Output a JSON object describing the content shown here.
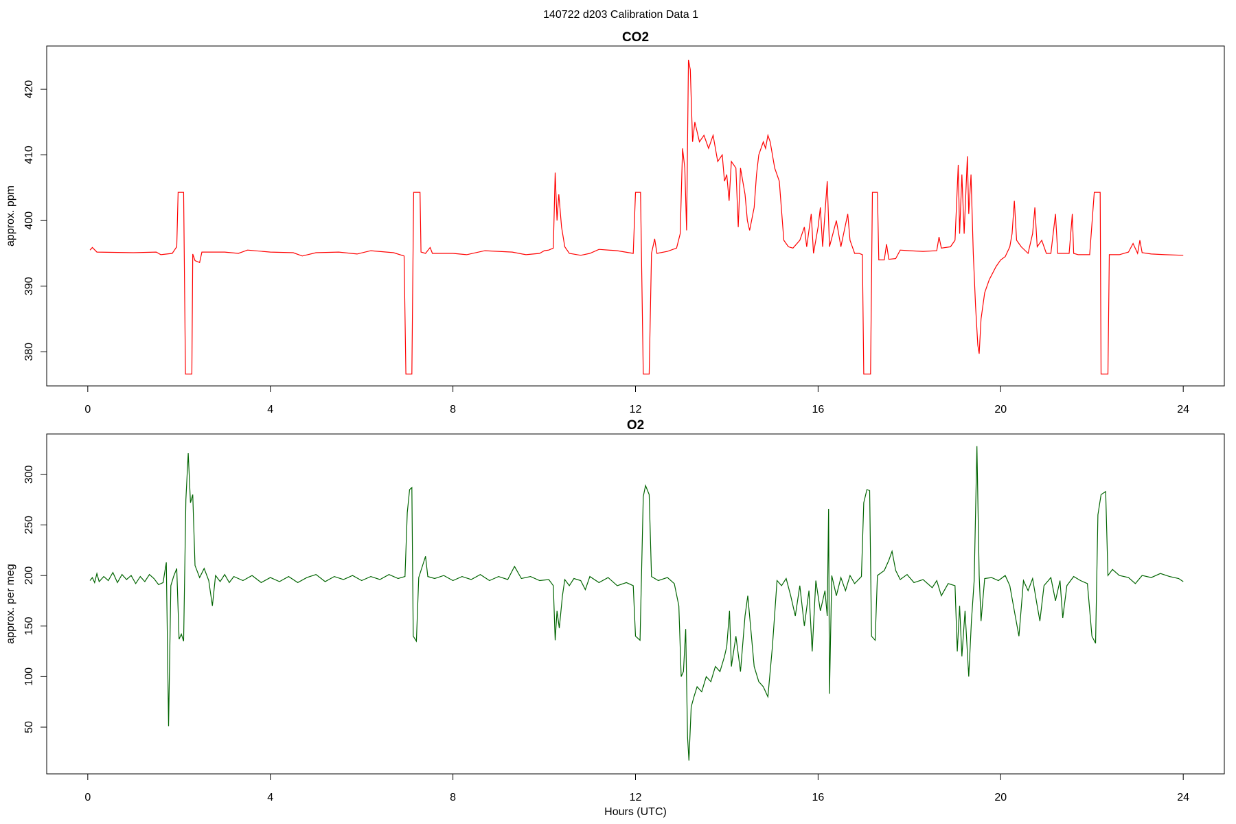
{
  "title": "140722   d203   Calibration Data 1",
  "chart_data": [
    {
      "type": "line",
      "title": "CO2",
      "ylabel": "approx. ppm",
      "color": "#ff0000",
      "xlim": [
        -0.9,
        24.9
      ],
      "xticks": [
        0,
        4,
        8,
        12,
        16,
        20,
        24
      ],
      "ylim": [
        374.8,
        426.6
      ],
      "yticks": [
        380,
        390,
        400,
        410,
        420
      ],
      "x": [
        0.05,
        0.1,
        0.2,
        1.0,
        1.5,
        1.6,
        1.85,
        1.95,
        1.98,
        2.1,
        2.14,
        2.28,
        2.3,
        2.35,
        2.45,
        2.5,
        3.0,
        3.3,
        3.5,
        4.0,
        4.5,
        4.7,
        5.0,
        5.5,
        5.9,
        6.2,
        6.7,
        6.93,
        6.97,
        7.1,
        7.14,
        7.28,
        7.3,
        7.4,
        7.5,
        7.55,
        8.0,
        8.3,
        8.7,
        9.3,
        9.6,
        9.9,
        10.0,
        10.1,
        10.2,
        10.24,
        10.28,
        10.32,
        10.38,
        10.45,
        10.55,
        10.8,
        11.0,
        11.2,
        11.6,
        11.95,
        12.0,
        12.11,
        12.17,
        12.3,
        12.35,
        12.42,
        12.47,
        12.7,
        12.9,
        12.98,
        13.03,
        13.08,
        13.12,
        13.16,
        13.2,
        13.25,
        13.3,
        13.4,
        13.5,
        13.6,
        13.7,
        13.8,
        13.9,
        13.95,
        14.0,
        14.05,
        14.1,
        14.2,
        14.25,
        14.3,
        14.4,
        14.45,
        14.5,
        14.6,
        14.65,
        14.7,
        14.8,
        14.85,
        14.9,
        14.95,
        15.05,
        15.15,
        15.25,
        15.35,
        15.45,
        15.6,
        15.7,
        15.75,
        15.85,
        15.9,
        16.0,
        16.05,
        16.1,
        16.2,
        16.25,
        16.4,
        16.5,
        16.65,
        16.7,
        16.8,
        16.9,
        16.97,
        17.0,
        17.15,
        17.19,
        17.3,
        17.33,
        17.45,
        17.5,
        17.55,
        17.7,
        17.8,
        18.0,
        18.3,
        18.6,
        18.65,
        18.7,
        18.9,
        19.0,
        19.07,
        19.1,
        19.15,
        19.2,
        19.27,
        19.3,
        19.35,
        19.4,
        19.45,
        19.5,
        19.53,
        19.57,
        19.65,
        19.75,
        19.9,
        20.0,
        20.1,
        20.2,
        20.25,
        20.3,
        20.35,
        20.45,
        20.6,
        20.7,
        20.75,
        20.8,
        20.9,
        21.0,
        21.1,
        21.2,
        21.25,
        21.4,
        21.5,
        21.57,
        21.6,
        21.7,
        21.95,
        22.05,
        22.18,
        22.2,
        22.35,
        22.38,
        22.6,
        22.8,
        22.9,
        23.0,
        23.05,
        23.1,
        23.3,
        23.6,
        24.0
      ],
      "values": [
        395.5,
        395.9,
        395.2,
        395.1,
        395.2,
        394.8,
        395.0,
        396,
        404.3,
        404.3,
        376.6,
        376.6,
        394.9,
        393.9,
        393.6,
        395.2,
        395.2,
        395.0,
        395.5,
        395.2,
        395.1,
        394.6,
        395.1,
        395.2,
        394.9,
        395.4,
        395.1,
        394.6,
        376.6,
        376.6,
        404.3,
        404.3,
        395.2,
        395.0,
        395.9,
        395.0,
        395.0,
        394.8,
        395.4,
        395.2,
        394.8,
        395.0,
        395.4,
        395.5,
        395.8,
        407.3,
        400,
        404,
        399,
        396,
        395,
        394.7,
        395.0,
        395.6,
        395.4,
        395.0,
        404.3,
        404.3,
        376.6,
        376.6,
        395.0,
        397.2,
        395.0,
        395.3,
        395.8,
        398,
        411,
        408,
        398.5,
        424.5,
        423,
        412,
        415,
        412,
        413,
        411,
        413,
        409,
        410,
        406,
        407,
        403,
        409,
        408,
        399,
        408,
        404,
        400,
        398.5,
        402,
        407,
        410,
        412,
        411,
        413,
        412,
        408,
        406,
        397,
        396,
        395.8,
        397,
        399,
        396,
        401,
        395,
        399,
        402,
        396,
        406,
        396,
        400,
        396,
        401,
        397,
        395,
        395,
        394.8,
        376.6,
        376.6,
        404.3,
        404.3,
        394.0,
        394.0,
        396.4,
        394.1,
        394.2,
        395.5,
        395.4,
        395.3,
        395.4,
        397.5,
        395.8,
        396,
        397,
        408.5,
        398,
        407,
        398,
        409.8,
        401,
        407,
        395,
        387,
        381,
        379.7,
        385,
        389,
        391,
        393,
        394,
        394.5,
        396,
        398,
        403,
        397,
        396,
        395,
        398,
        402,
        396,
        397,
        395,
        395,
        401,
        395,
        395,
        395,
        401,
        395,
        394.8,
        394.8,
        404.3,
        404.3,
        376.6,
        376.6,
        394.8,
        394.8,
        395.2,
        396.5,
        395,
        397,
        395.1,
        394.9,
        394.8,
        394.7
      ]
    },
    {
      "type": "line",
      "title": "O2",
      "ylabel": "approx. per meg",
      "xlabel": "Hours (UTC)",
      "color": "#006400",
      "xlim": [
        -0.9,
        24.9
      ],
      "xticks": [
        0,
        4,
        8,
        12,
        16,
        20,
        24
      ],
      "ylim": [
        3.8,
        340
      ],
      "yticks": [
        50,
        100,
        150,
        200,
        250,
        300
      ],
      "x": [
        0.05,
        0.1,
        0.15,
        0.2,
        0.25,
        0.35,
        0.45,
        0.55,
        0.65,
        0.75,
        0.85,
        0.95,
        1.05,
        1.15,
        1.25,
        1.35,
        1.45,
        1.55,
        1.65,
        1.72,
        1.77,
        1.82,
        1.88,
        1.95,
        2.0,
        2.05,
        2.1,
        2.15,
        2.2,
        2.25,
        2.3,
        2.35,
        2.45,
        2.55,
        2.65,
        2.73,
        2.8,
        2.9,
        3.0,
        3.1,
        3.2,
        3.4,
        3.6,
        3.8,
        4.0,
        4.2,
        4.4,
        4.6,
        4.8,
        5.0,
        5.2,
        5.4,
        5.6,
        5.8,
        6.0,
        6.2,
        6.4,
        6.6,
        6.8,
        6.95,
        7.0,
        7.05,
        7.1,
        7.13,
        7.2,
        7.25,
        7.35,
        7.4,
        7.45,
        7.6,
        7.8,
        8.0,
        8.2,
        8.4,
        8.6,
        8.8,
        9.0,
        9.2,
        9.35,
        9.5,
        9.7,
        9.9,
        10.1,
        10.2,
        10.24,
        10.28,
        10.33,
        10.4,
        10.45,
        10.55,
        10.65,
        10.8,
        10.9,
        11.0,
        11.2,
        11.4,
        11.6,
        11.8,
        11.95,
        12.0,
        12.1,
        12.17,
        12.22,
        12.3,
        12.35,
        12.5,
        12.7,
        12.85,
        12.95,
        13.0,
        13.05,
        13.1,
        13.14,
        13.17,
        13.22,
        13.28,
        13.35,
        13.45,
        13.55,
        13.65,
        13.75,
        13.85,
        13.95,
        14.0,
        14.06,
        14.1,
        14.2,
        14.3,
        14.4,
        14.46,
        14.52,
        14.6,
        14.7,
        14.8,
        14.9,
        15.0,
        15.1,
        15.2,
        15.3,
        15.4,
        15.5,
        15.6,
        15.7,
        15.8,
        15.87,
        15.95,
        16.05,
        16.15,
        16.2,
        16.23,
        16.25,
        16.3,
        16.4,
        16.5,
        16.6,
        16.7,
        16.8,
        16.95,
        17.0,
        17.07,
        17.13,
        17.17,
        17.25,
        17.3,
        17.45,
        17.55,
        17.62,
        17.7,
        17.8,
        17.95,
        18.1,
        18.3,
        18.5,
        18.6,
        18.7,
        18.85,
        19.0,
        19.05,
        19.1,
        19.15,
        19.22,
        19.3,
        19.36,
        19.42,
        19.48,
        19.53,
        19.57,
        19.65,
        19.8,
        19.95,
        20.1,
        20.2,
        20.3,
        20.4,
        20.5,
        20.6,
        20.7,
        20.8,
        20.86,
        20.95,
        21.1,
        21.2,
        21.3,
        21.36,
        21.45,
        21.6,
        21.75,
        21.9,
        22.0,
        22.08,
        22.13,
        22.2,
        22.3,
        22.35,
        22.45,
        22.6,
        22.8,
        22.95,
        23.1,
        23.3,
        23.5,
        23.7,
        23.9,
        24.0
      ],
      "values": [
        195,
        198,
        193,
        202,
        194,
        199,
        195,
        203,
        193,
        201,
        196,
        200,
        192,
        199,
        194,
        201,
        197,
        191,
        193,
        213,
        51,
        190,
        199,
        207,
        137,
        142,
        135,
        275,
        321,
        272,
        280,
        210,
        198,
        207,
        195,
        170,
        200,
        194,
        201,
        193,
        199,
        195,
        200,
        193,
        198,
        194,
        199,
        193,
        198,
        201,
        194,
        199,
        196,
        200,
        195,
        199,
        196,
        201,
        197,
        199,
        262,
        285,
        287,
        140,
        135,
        198,
        212,
        219,
        199,
        197,
        200,
        195,
        199,
        196,
        201,
        195,
        199,
        196,
        209,
        197,
        199,
        195,
        196,
        190,
        136,
        165,
        148,
        180,
        196,
        190,
        197,
        195,
        186,
        199,
        193,
        198,
        190,
        193,
        190,
        140,
        136,
        278,
        289,
        280,
        199,
        195,
        198,
        192,
        170,
        100,
        105,
        147,
        40,
        17,
        70,
        80,
        90,
        85,
        100,
        95,
        110,
        105,
        120,
        130,
        165,
        110,
        140,
        105,
        160,
        180,
        150,
        110,
        95,
        90,
        80,
        130,
        195,
        190,
        197,
        180,
        160,
        190,
        150,
        185,
        125,
        195,
        165,
        185,
        160,
        266,
        83,
        200,
        180,
        198,
        185,
        200,
        192,
        199,
        272,
        285,
        284,
        140,
        136,
        200,
        205,
        215,
        224,
        205,
        196,
        201,
        193,
        196,
        188,
        195,
        180,
        192,
        190,
        125,
        170,
        120,
        165,
        100,
        155,
        195,
        328,
        200,
        155,
        197,
        198,
        195,
        200,
        190,
        165,
        140,
        195,
        185,
        197,
        170,
        155,
        190,
        198,
        175,
        195,
        158,
        190,
        199,
        195,
        192,
        140,
        133,
        260,
        280,
        283,
        200,
        206,
        200,
        198,
        192,
        200,
        198,
        202,
        199,
        197,
        194
      ]
    }
  ]
}
